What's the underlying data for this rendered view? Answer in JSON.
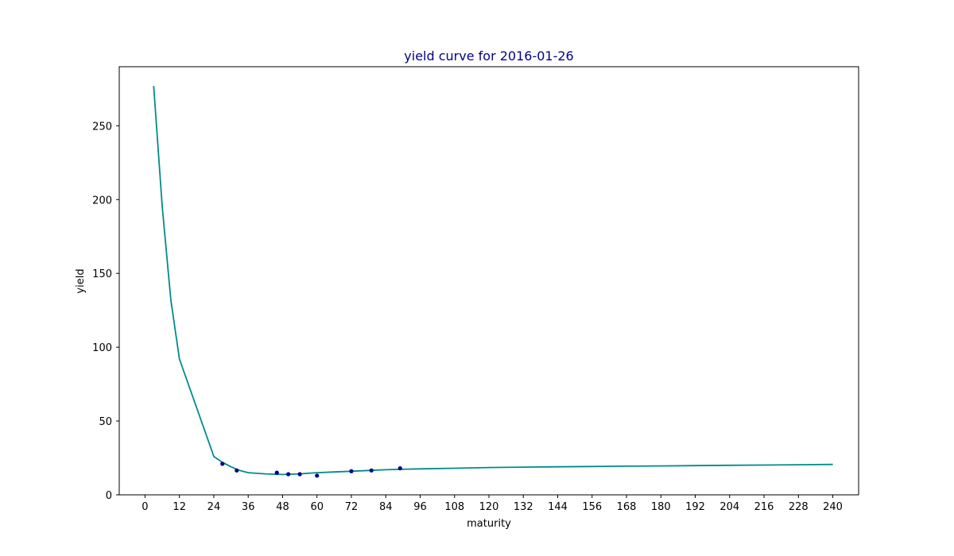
{
  "chart_data": {
    "type": "line",
    "title": "yield curve for 2016-01-26",
    "xlabel": "maturity",
    "ylabel": "yield",
    "xlim": [
      -9,
      249
    ],
    "ylim": [
      0,
      290
    ],
    "x_ticks": [
      0,
      12,
      24,
      36,
      48,
      60,
      72,
      84,
      96,
      108,
      120,
      132,
      144,
      156,
      168,
      180,
      192,
      204,
      216,
      228,
      240
    ],
    "y_ticks": [
      0,
      50,
      100,
      150,
      200,
      250
    ],
    "grid": false,
    "legend": "none",
    "series": [
      {
        "kind": "line",
        "color": "#008b8b",
        "x": [
          3,
          6,
          9,
          12,
          24,
          27,
          30,
          33,
          36,
          42,
          48,
          54,
          60,
          66,
          72,
          78,
          84,
          90,
          96,
          108,
          120,
          132,
          144,
          156,
          168,
          180,
          192,
          204,
          216,
          228,
          240
        ],
        "y": [
          277,
          195,
          132,
          92,
          26,
          22,
          19,
          16.5,
          15,
          14.2,
          13.8,
          14.2,
          15,
          15.5,
          16,
          16.5,
          17,
          17.3,
          17.6,
          18,
          18.5,
          18.8,
          19,
          19.2,
          19.4,
          19.6,
          19.8,
          20,
          20.2,
          20.4,
          20.6
        ]
      },
      {
        "kind": "scatter",
        "color": "#00008b",
        "x": [
          27,
          32,
          46,
          50,
          54,
          60,
          72,
          79,
          89
        ],
        "y": [
          21,
          16.5,
          15,
          14,
          14,
          13,
          16,
          16.5,
          18
        ]
      }
    ]
  },
  "colors": {
    "title": "#00008b",
    "line": "#008b8b",
    "points": "#00008b"
  }
}
